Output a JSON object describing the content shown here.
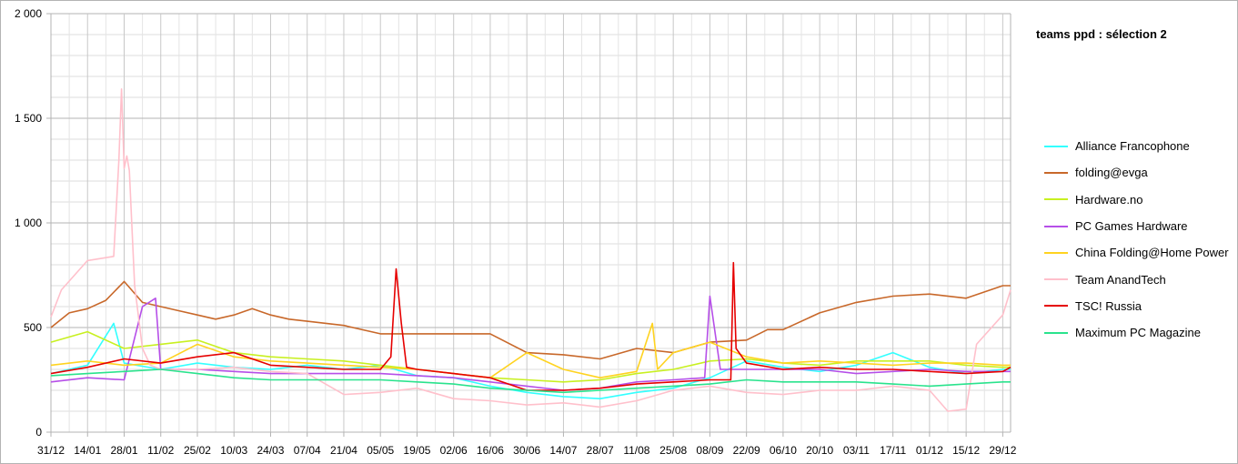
{
  "chart_data": {
    "type": "line",
    "title": "teams ppd : sélection 2",
    "xlabel": "",
    "ylabel": "",
    "ylim": [
      0,
      2000
    ],
    "y_ticks": [
      "0",
      "500",
      "1 000",
      "1 500",
      "2 000"
    ],
    "y_tick_values": [
      0,
      500,
      1000,
      1500,
      2000
    ],
    "x_tick_labels": [
      "31/12",
      "14/01",
      "28/01",
      "11/02",
      "25/02",
      "10/03",
      "24/03",
      "07/04",
      "21/04",
      "05/05",
      "19/05",
      "02/06",
      "16/06",
      "30/06",
      "14/07",
      "28/07",
      "11/08",
      "25/08",
      "08/09",
      "22/09",
      "06/10",
      "20/10",
      "03/11",
      "17/11",
      "01/12",
      "15/12",
      "29/12"
    ],
    "x_days_per_tick": 14,
    "x_range_days": [
      0,
      367
    ],
    "grid": true,
    "legend_position": "right",
    "series": [
      {
        "name": "Alliance Francophone",
        "color": "#33ffff",
        "x": [
          0,
          14,
          24,
          28,
          42,
          56,
          70,
          84,
          98,
          112,
          126,
          140,
          154,
          168,
          182,
          196,
          210,
          224,
          238,
          252,
          266,
          280,
          294,
          308,
          322,
          336,
          350,
          364,
          367
        ],
        "values": [
          280,
          320,
          520,
          330,
          300,
          330,
          310,
          300,
          320,
          300,
          320,
          270,
          260,
          220,
          190,
          170,
          160,
          190,
          210,
          260,
          340,
          310,
          290,
          320,
          380,
          310,
          280,
          300,
          300
        ]
      },
      {
        "name": "folding@evga",
        "color": "#c8682a",
        "x": [
          0,
          7,
          14,
          21,
          28,
          35,
          42,
          49,
          56,
          63,
          70,
          77,
          84,
          91,
          98,
          112,
          126,
          140,
          154,
          168,
          182,
          196,
          210,
          224,
          238,
          252,
          266,
          274,
          280,
          294,
          308,
          322,
          336,
          350,
          364,
          367
        ],
        "values": [
          500,
          570,
          590,
          630,
          720,
          620,
          600,
          580,
          560,
          540,
          560,
          590,
          560,
          540,
          530,
          510,
          470,
          470,
          470,
          470,
          380,
          370,
          350,
          400,
          380,
          430,
          440,
          490,
          490,
          570,
          620,
          650,
          660,
          640,
          700,
          700
        ]
      },
      {
        "name": "Hardware.no",
        "color": "#c8f020",
        "x": [
          0,
          14,
          28,
          42,
          56,
          70,
          84,
          98,
          112,
          126,
          140,
          154,
          168,
          182,
          196,
          210,
          224,
          238,
          252,
          266,
          280,
          294,
          308,
          322,
          336,
          350,
          364,
          367
        ],
        "values": [
          430,
          480,
          400,
          420,
          440,
          380,
          360,
          350,
          340,
          320,
          300,
          280,
          260,
          250,
          240,
          250,
          280,
          300,
          340,
          350,
          330,
          320,
          340,
          340,
          340,
          320,
          310,
          310
        ]
      },
      {
        "name": "PC Games Hardware",
        "color": "#b64fe8",
        "x": [
          0,
          14,
          28,
          35,
          40,
          42,
          56,
          70,
          84,
          98,
          112,
          126,
          140,
          154,
          168,
          182,
          196,
          210,
          224,
          238,
          250,
          252,
          256,
          266,
          280,
          294,
          308,
          322,
          336,
          350,
          364,
          367
        ],
        "values": [
          240,
          260,
          250,
          600,
          640,
          300,
          300,
          290,
          280,
          280,
          280,
          280,
          270,
          260,
          240,
          220,
          200,
          210,
          240,
          250,
          260,
          650,
          300,
          300,
          300,
          300,
          280,
          290,
          300,
          290,
          290,
          290
        ]
      },
      {
        "name": "China Folding@Home Power",
        "color": "#ffd320",
        "x": [
          0,
          14,
          28,
          42,
          56,
          70,
          84,
          98,
          112,
          126,
          140,
          154,
          168,
          182,
          196,
          210,
          224,
          230,
          232,
          238,
          252,
          266,
          280,
          294,
          308,
          322,
          336,
          350,
          364,
          367
        ],
        "values": [
          320,
          340,
          320,
          330,
          420,
          360,
          340,
          330,
          320,
          310,
          300,
          280,
          260,
          380,
          300,
          260,
          290,
          520,
          300,
          380,
          430,
          360,
          330,
          340,
          330,
          320,
          330,
          330,
          320,
          320
        ]
      },
      {
        "name": "Team AnandTech",
        "color": "#ffc0cb",
        "x": [
          0,
          4,
          14,
          24,
          26,
          27,
          28,
          29,
          30,
          32,
          35,
          38,
          42,
          56,
          70,
          84,
          98,
          112,
          126,
          140,
          154,
          168,
          182,
          196,
          210,
          224,
          238,
          252,
          266,
          280,
          294,
          308,
          322,
          336,
          343,
          350,
          354,
          364,
          367
        ],
        "values": [
          550,
          680,
          820,
          840,
          1300,
          1640,
          1260,
          1320,
          1250,
          700,
          400,
          320,
          300,
          300,
          310,
          290,
          280,
          180,
          190,
          210,
          160,
          150,
          130,
          140,
          120,
          150,
          200,
          220,
          190,
          180,
          200,
          200,
          220,
          200,
          100,
          110,
          420,
          560,
          680
        ]
      },
      {
        "name": "TSC! Russia",
        "color": "#e60000",
        "x": [
          0,
          14,
          28,
          42,
          56,
          70,
          84,
          98,
          112,
          126,
          130,
          132,
          134,
          136,
          140,
          154,
          168,
          182,
          196,
          210,
          224,
          238,
          252,
          260,
          261,
          262,
          266,
          280,
          294,
          308,
          322,
          336,
          350,
          364,
          367
        ],
        "values": [
          280,
          310,
          350,
          330,
          360,
          380,
          320,
          310,
          300,
          300,
          360,
          780,
          520,
          310,
          300,
          280,
          260,
          200,
          200,
          210,
          230,
          240,
          250,
          250,
          810,
          400,
          330,
          300,
          310,
          300,
          300,
          290,
          280,
          290,
          310
        ]
      },
      {
        "name": "Maximum PC Magazine",
        "color": "#2ae38d",
        "x": [
          0,
          14,
          28,
          42,
          56,
          70,
          84,
          98,
          112,
          126,
          140,
          154,
          168,
          182,
          196,
          210,
          224,
          238,
          252,
          266,
          280,
          294,
          308,
          322,
          336,
          350,
          364,
          367
        ],
        "values": [
          270,
          280,
          290,
          300,
          280,
          260,
          250,
          250,
          250,
          250,
          240,
          230,
          210,
          200,
          190,
          200,
          210,
          220,
          230,
          250,
          240,
          240,
          240,
          230,
          220,
          230,
          240,
          240
        ]
      }
    ]
  }
}
